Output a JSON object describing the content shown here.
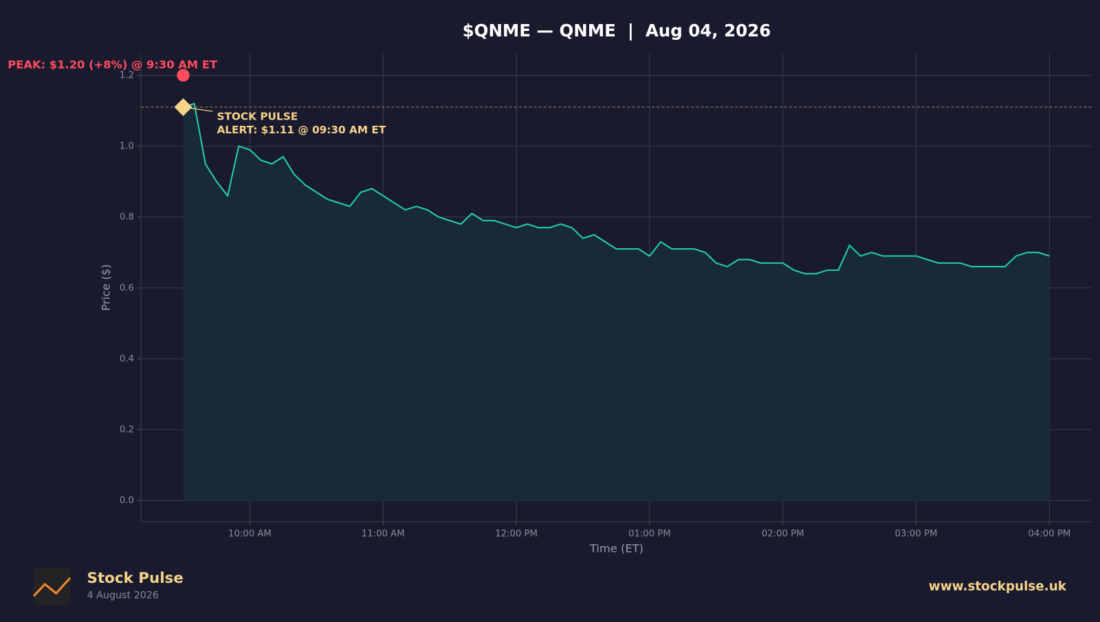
{
  "chart_data": {
    "type": "line",
    "title": "$QNME — QNME  |  Aug 04, 2026",
    "x_label": "Time (ET)",
    "y_label": "Price ($)",
    "x": [
      "09:30 AM",
      "09:35 AM",
      "09:40 AM",
      "09:45 AM",
      "09:50 AM",
      "09:55 AM",
      "10:00 AM",
      "10:05 AM",
      "10:10 AM",
      "10:15 AM",
      "10:20 AM",
      "10:25 AM",
      "10:30 AM",
      "10:35 AM",
      "10:40 AM",
      "10:45 AM",
      "10:50 AM",
      "10:55 AM",
      "11:00 AM",
      "11:05 AM",
      "11:10 AM",
      "11:15 AM",
      "11:20 AM",
      "11:25 AM",
      "11:30 AM",
      "11:35 AM",
      "11:40 AM",
      "11:45 AM",
      "11:50 AM",
      "11:55 AM",
      "12:00 PM",
      "12:05 PM",
      "12:10 PM",
      "12:15 PM",
      "12:20 PM",
      "12:25 PM",
      "12:30 PM",
      "12:35 PM",
      "12:40 PM",
      "12:45 PM",
      "12:50 PM",
      "12:55 PM",
      "01:00 PM",
      "01:05 PM",
      "01:10 PM",
      "01:15 PM",
      "01:20 PM",
      "01:25 PM",
      "01:30 PM",
      "01:35 PM",
      "01:40 PM",
      "01:45 PM",
      "01:50 PM",
      "01:55 PM",
      "02:00 PM",
      "02:05 PM",
      "02:10 PM",
      "02:15 PM",
      "02:20 PM",
      "02:25 PM",
      "02:30 PM",
      "02:35 PM",
      "02:40 PM",
      "02:45 PM",
      "02:50 PM",
      "02:55 PM",
      "03:00 PM",
      "03:05 PM",
      "03:10 PM",
      "03:15 PM",
      "03:20 PM",
      "03:25 PM",
      "03:30 PM",
      "03:35 PM",
      "03:40 PM",
      "03:45 PM",
      "03:50 PM",
      "03:55 PM",
      "04:00 PM"
    ],
    "series": [
      {
        "name": "QNME",
        "color": "#22d3a6",
        "fill": "#182a38",
        "values": [
          1.11,
          1.12,
          0.95,
          0.9,
          0.86,
          1.0,
          0.99,
          0.96,
          0.95,
          0.97,
          0.92,
          0.89,
          0.87,
          0.85,
          0.84,
          0.83,
          0.87,
          0.88,
          0.86,
          0.84,
          0.82,
          0.83,
          0.82,
          0.8,
          0.79,
          0.78,
          0.81,
          0.79,
          0.79,
          0.78,
          0.77,
          0.78,
          0.77,
          0.77,
          0.78,
          0.77,
          0.74,
          0.75,
          0.73,
          0.71,
          0.71,
          0.71,
          0.69,
          0.73,
          0.71,
          0.71,
          0.71,
          0.7,
          0.67,
          0.66,
          0.68,
          0.68,
          0.67,
          0.67,
          0.67,
          0.65,
          0.64,
          0.64,
          0.65,
          0.65,
          0.72,
          0.69,
          0.7,
          0.69,
          0.69,
          0.69,
          0.69,
          0.68,
          0.67,
          0.67,
          0.67,
          0.66,
          0.66,
          0.66,
          0.66,
          0.69,
          0.7,
          0.7,
          0.69
        ]
      }
    ],
    "xlim": [
      "09:11 AM",
      "04:19 PM"
    ],
    "xticks": [
      "10:00 AM",
      "11:00 AM",
      "12:00 PM",
      "01:00 PM",
      "02:00 PM",
      "03:00 PM",
      "04:00 PM"
    ],
    "ylim": [
      -0.06,
      1.26
    ],
    "yticks": [
      {
        "value": 0,
        "label": "0.0"
      },
      0.2,
      0.4,
      0.6,
      0.8,
      {
        "value": 1,
        "label": "1.0"
      },
      1.2
    ],
    "grid": true,
    "annotations": [
      {
        "text": "PEAK: $1.20 (+8%) @ 9:30 AM ET",
        "x": "09:30 AM",
        "y": 1.2,
        "color": "#ff4d5e"
      },
      {
        "title": "STOCK PULSE",
        "text": "ALERT: $1.11 @ 09:30 AM ET",
        "x": "09:30 AM",
        "y": 1.11,
        "color": "#f6d38a"
      }
    ]
  },
  "footer": {
    "brand": "Stock Pulse",
    "date": "4 August 2026",
    "url": "www.stockpulse.uk"
  }
}
